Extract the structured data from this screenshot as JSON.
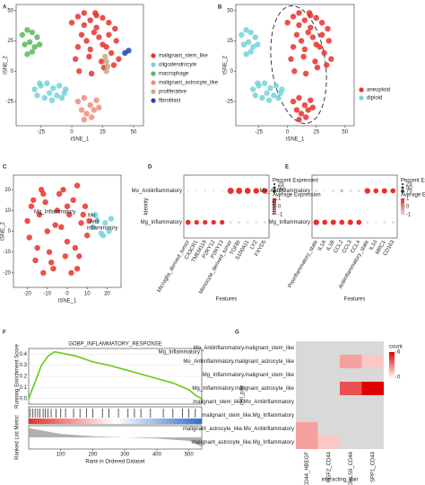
{
  "chart_data": [
    {
      "type": "scatter",
      "panel_label": "A",
      "xlabel": "tSNE_1",
      "ylabel": "tSNE_2",
      "xlim": [
        -45,
        58
      ],
      "ylim": [
        -45,
        55
      ],
      "xticks": [
        -25,
        0,
        25,
        50
      ],
      "yticks": [
        -25,
        0,
        25,
        50
      ],
      "legend": "right",
      "series": [
        {
          "name": "malignant_stem_like",
          "color": "#e8312a",
          "x": [
            0,
            5,
            10,
            15,
            20,
            25,
            30,
            35,
            8,
            12,
            18,
            22,
            28,
            32,
            3,
            14,
            24,
            34,
            6,
            16,
            26,
            36,
            10,
            20,
            30,
            15,
            25,
            5,
            38,
            19
          ],
          "y": [
            40,
            45,
            48,
            42,
            46,
            44,
            40,
            35,
            30,
            25,
            32,
            28,
            20,
            15,
            10,
            12,
            8,
            5,
            0,
            -2,
            3,
            25,
            38,
            36,
            30,
            18,
            22,
            20,
            10,
            48
          ]
        },
        {
          "name": "oligodendrocyte",
          "color": "#74d2d8",
          "x": [
            -30,
            -25,
            -20,
            -15,
            -10,
            -5,
            -28,
            -22,
            -18,
            -12,
            -8,
            -26,
            -16,
            -6
          ],
          "y": [
            -15,
            -12,
            -10,
            -14,
            -12,
            -15,
            -20,
            -22,
            -18,
            -20,
            -22,
            -10,
            -24,
            -18
          ]
        },
        {
          "name": "macrophage",
          "color": "#5cb85c",
          "x": [
            -40,
            -36,
            -32,
            -28,
            -38,
            -34,
            -30,
            -26,
            -36,
            -32
          ],
          "y": [
            30,
            34,
            32,
            28,
            22,
            24,
            20,
            22,
            14,
            16
          ]
        },
        {
          "name": "malignant_astrocyte_like",
          "color": "#f28b7d",
          "x": [
            5,
            10,
            15,
            20,
            8,
            12,
            18,
            22,
            10,
            16
          ],
          "y": [
            -25,
            -22,
            -28,
            -24,
            -32,
            -35,
            -32,
            -30,
            -40,
            -38
          ]
        },
        {
          "name": "proliferative",
          "color": "#c9a883",
          "x": [
            27,
            28,
            29,
            28
          ],
          "y": [
            12,
            8,
            4,
            0
          ]
        },
        {
          "name": "fibroblast",
          "color": "#2347a8",
          "x": [
            43,
            46
          ],
          "y": [
            15,
            17
          ]
        }
      ]
    },
    {
      "type": "scatter",
      "panel_label": "B",
      "xlabel": "tSNE_1",
      "ylabel": "tSNE_2",
      "xlim": [
        -45,
        58
      ],
      "ylim": [
        -45,
        55
      ],
      "xticks": [
        -25,
        0,
        25,
        50
      ],
      "yticks": [
        -25,
        0,
        25,
        50
      ],
      "legend": "right",
      "series": [
        {
          "name": "aneuploid",
          "color": "#e8312a",
          "x": [
            0,
            5,
            10,
            15,
            20,
            25,
            30,
            35,
            8,
            12,
            18,
            22,
            28,
            32,
            3,
            14,
            24,
            34,
            6,
            16,
            26,
            36,
            10,
            20,
            30,
            15,
            25,
            5,
            38,
            19,
            5,
            10,
            15,
            20,
            8,
            12,
            18,
            22,
            10,
            16
          ],
          "y": [
            40,
            45,
            48,
            42,
            46,
            44,
            40,
            35,
            30,
            25,
            32,
            28,
            20,
            15,
            10,
            12,
            8,
            5,
            0,
            -2,
            3,
            25,
            38,
            36,
            30,
            18,
            22,
            20,
            10,
            48,
            -25,
            -22,
            -28,
            -24,
            -32,
            -35,
            -32,
            -30,
            -40,
            -38
          ]
        },
        {
          "name": "diploid",
          "color": "#74d2d8",
          "x": [
            -30,
            -25,
            -20,
            -15,
            -10,
            -5,
            -28,
            -22,
            -18,
            -12,
            -8,
            -26,
            -16,
            -6,
            -40,
            -36,
            -32,
            -28,
            -38,
            -34,
            -30,
            -26,
            -36,
            -32
          ],
          "y": [
            -15,
            -12,
            -10,
            -14,
            -12,
            -15,
            -20,
            -22,
            -18,
            -20,
            -22,
            -10,
            -24,
            -18,
            30,
            34,
            32,
            28,
            22,
            24,
            20,
            22,
            14,
            16
          ]
        }
      ]
    },
    {
      "type": "scatter",
      "panel_label": "C",
      "xlabel": "tSNE_1",
      "ylabel": "tSNE_2",
      "xlim": [
        -27,
        27
      ],
      "ylim": [
        -27,
        27
      ],
      "xticks": [
        -20,
        -10,
        0,
        10,
        20
      ],
      "yticks": [
        -20,
        -10,
        0,
        10,
        20
      ],
      "annotations": [
        "Mo_",
        "Anti",
        "inflammatory",
        "Mg_Inflammatory"
      ],
      "series": [
        {
          "name": "Mg_Inflammatory",
          "color": "#e8312a",
          "x": [
            -20,
            -18,
            -15,
            -12,
            -10,
            -8,
            -5,
            -2,
            0,
            3,
            5,
            8,
            10,
            -16,
            -12,
            -6,
            -1,
            4,
            9,
            -19,
            -14,
            -9,
            -3,
            2,
            7,
            -17,
            -11,
            -4,
            1,
            6,
            -13,
            -7,
            0,
            5,
            11
          ],
          "y": [
            5,
            12,
            -8,
            18,
            0,
            -15,
            10,
            20,
            -5,
            15,
            -18,
            8,
            -2,
            -14,
            -20,
            3,
            -12,
            -8,
            12,
            -3,
            8,
            -10,
            2,
            -20,
            4,
            15,
            14,
            18,
            8,
            -12,
            20,
            -18,
            12,
            22,
            5
          ]
        },
        {
          "name": "Mo_Antiinflammatory",
          "color": "#74d2d8",
          "x": [
            13,
            15,
            17,
            19,
            21,
            22,
            14,
            18
          ],
          "y": [
            2,
            5,
            -1,
            4,
            0,
            6,
            8,
            -2
          ]
        }
      ]
    },
    {
      "type": "dot",
      "panel_label": "D",
      "xlabel": "Features",
      "ylabel": "Identity",
      "categories": [
        "Mo_Antiinflammatory",
        "Mg_Inflammatory"
      ],
      "features": [
        "Microglia_derived_tumor",
        "CX3CR1",
        "TMEM119",
        "P2RY12",
        "P2RY13",
        "Monocyte_derived_tumor",
        "TGFBI",
        "S100A11",
        "LYZ",
        "FXYD5"
      ],
      "low_color": "#dcdcdc",
      "high_color": "#e8312a",
      "color_legend_title": "Average Expression",
      "color_lim": [
        -1,
        1
      ],
      "color_ticks": [
        -1,
        0,
        1
      ],
      "size_legend_title": "Percent Expressed",
      "size_ticks": [
        25,
        50,
        75
      ],
      "series": [
        {
          "name": "Mo_Antiinflammatory",
          "avg_expression": [
            -1,
            -1,
            -1,
            -1,
            -1,
            1,
            1,
            1,
            1,
            1
          ],
          "pct_expressed": [
            5,
            5,
            5,
            5,
            5,
            60,
            60,
            55,
            50,
            50
          ]
        },
        {
          "name": "Mg_Inflammatory",
          "avg_expression": [
            1,
            1,
            1,
            1,
            1,
            -1,
            -1,
            -1,
            -1,
            -1
          ],
          "pct_expressed": [
            40,
            35,
            35,
            35,
            35,
            10,
            10,
            10,
            10,
            10
          ]
        }
      ]
    },
    {
      "type": "dot",
      "panel_label": "E",
      "xlabel": "Features",
      "ylabel": "Identity",
      "categories": [
        "Mo_Antiinflammatory",
        "Mg_Inflammatory"
      ],
      "features": [
        "Proinflammatory_state",
        "IL1A",
        "IL1B",
        "CCL2",
        "CCL3",
        "CCL4",
        "Antiinflammatory_state",
        "IL10",
        "MRC1",
        "CD163"
      ],
      "low_color": "#dcdcdc",
      "high_color": "#e8312a",
      "color_legend_title": "Average Expression",
      "color_lim": [
        -1,
        1
      ],
      "color_ticks": [
        -1,
        0,
        1
      ],
      "size_legend_title": "Percent Expressed",
      "size_ticks": [
        25,
        50,
        75
      ],
      "series": [
        {
          "name": "Mo_Antiinflammatory",
          "avg_expression": [
            -1,
            -1,
            -1,
            -0.5,
            -1,
            -1,
            1,
            1,
            1,
            1
          ],
          "pct_expressed": [
            10,
            5,
            10,
            15,
            10,
            10,
            50,
            40,
            45,
            40
          ]
        },
        {
          "name": "Mg_Inflammatory",
          "avg_expression": [
            1,
            1,
            1,
            1,
            1,
            1,
            -1,
            -1,
            -1,
            -1
          ],
          "pct_expressed": [
            50,
            40,
            45,
            40,
            45,
            40,
            10,
            5,
            10,
            10
          ]
        }
      ]
    },
    {
      "type": "line",
      "panel_label": "F",
      "title": "GOBP_INFLAMMATORY_RESPONSE",
      "legend_label": "Mg_Inflammatory",
      "xlabel": "Rank in Ordered Dataset",
      "ylabel": "Running Enrichment Score",
      "metric_label": "Ranked List Metric",
      "xlim": [
        0,
        540
      ],
      "xticks": [
        100,
        200,
        300,
        400,
        500
      ],
      "ylim": [
        -0.05,
        0.45
      ],
      "yticks": [
        {
          "value": 0,
          "label": "0.0"
        },
        {
          "value": 0.1,
          "label": "0.1"
        },
        {
          "value": 0.2,
          "label": "0.2"
        },
        {
          "value": 0.3,
          "label": "0.3"
        },
        {
          "value": 0.4,
          "label": "0.4"
        }
      ],
      "series": [
        {
          "name": "Mg_Inflammatory",
          "color": "#66cc11",
          "x": [
            0,
            20,
            40,
            60,
            80,
            100,
            150,
            200,
            250,
            300,
            350,
            400,
            450,
            500,
            520,
            540
          ],
          "y": [
            0,
            0.15,
            0.3,
            0.38,
            0.42,
            0.41,
            0.38,
            0.33,
            0.3,
            0.26,
            0.22,
            0.18,
            0.14,
            0.08,
            0.03,
            0
          ]
        }
      ],
      "hits": [
        5,
        12,
        20,
        28,
        35,
        45,
        52,
        60,
        70,
        85,
        100,
        115,
        140,
        160,
        180,
        200,
        230,
        250,
        280,
        310,
        330,
        350,
        380,
        420,
        450,
        480,
        500,
        520
      ],
      "metric": {
        "x": [
          0,
          100,
          200,
          300,
          400,
          500,
          540
        ],
        "y": [
          0.4,
          0.15,
          0.05,
          0,
          -0.05,
          -0.15,
          -0.4
        ],
        "ylim": [
          -0.5,
          0.5
        ]
      }
    },
    {
      "type": "heatmap",
      "panel_label": "G",
      "xlabel": "interacting_pair",
      "ylabel": "cell_pair",
      "rows": [
        "Mo_Antiinflammatory.malignant_stem_like",
        "Mo_Antiinflammatory.malignant_astrocyte_like",
        "Mg_Inflammatory.malignant_stem_like",
        "Mg_Inflammatory.malignant_astrocyte_like",
        "malignant_stem_like.Mo_Antiinflammatory",
        "malignant_stem_like.Mg_Inflammatory",
        "malignant_astrocyte_like.Mo_Antiinflammatory",
        "malignant_astrocyte_like.Mg_Inflammatory"
      ],
      "columns": [
        "CD44_HBEGF",
        "FGF2_CD44",
        "LGALS9_CD44",
        "SPP1_CD44"
      ],
      "values": [
        [
          null,
          null,
          null,
          null
        ],
        [
          null,
          null,
          2,
          1
        ],
        [
          null,
          null,
          null,
          null
        ],
        [
          null,
          null,
          4,
          6
        ],
        [
          null,
          null,
          null,
          null
        ],
        [
          null,
          null,
          null,
          null
        ],
        [
          2,
          null,
          null,
          null
        ],
        [
          2,
          1,
          null,
          null
        ]
      ],
      "empty_color": "#d9d9d9",
      "low_color": "#fff0ee",
      "high_color": "#e00000",
      "legend_title": "count",
      "clim": [
        0,
        6
      ],
      "cticks": [
        0,
        6
      ]
    }
  ]
}
